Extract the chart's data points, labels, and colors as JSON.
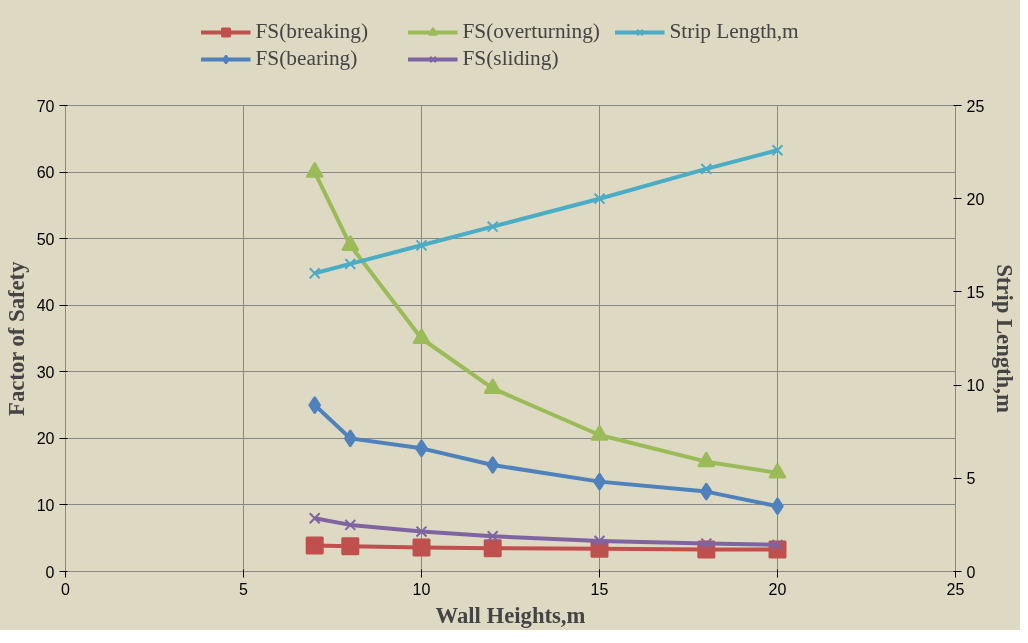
{
  "chart_data": {
    "type": "line",
    "xlabel": "Wall Heights,m",
    "ylabel": "Factor of Safety",
    "y2label": "Strip Length,m",
    "x": [
      7,
      8,
      10,
      12,
      15,
      18,
      20
    ],
    "xlim": [
      0,
      25
    ],
    "xticks": [
      0,
      5,
      10,
      15,
      20,
      25
    ],
    "ylim": [
      0,
      70
    ],
    "yticks": [
      0,
      10,
      20,
      30,
      40,
      50,
      60,
      70
    ],
    "y2lim": [
      0,
      25
    ],
    "y2ticks": [
      0,
      5,
      10,
      15,
      20,
      25
    ],
    "grid": true,
    "legend": "top",
    "series": [
      {
        "name": "FS(breaking)",
        "color": "#c0504d",
        "marker": "square",
        "values": [
          3.9,
          3.8,
          3.6,
          3.5,
          3.4,
          3.3,
          3.3
        ]
      },
      {
        "name": "FS(bearing)",
        "color": "#4f81bd",
        "marker": "diamond",
        "values": [
          25,
          20,
          18.5,
          16,
          13.5,
          12,
          9.8
        ]
      },
      {
        "name": "FS(overturning)",
        "color": "#9bbb59",
        "marker": "triangle",
        "values": [
          60,
          49,
          35,
          27.5,
          20.5,
          16.5,
          14.8
        ]
      },
      {
        "name": "FS(sliding)",
        "color": "#8064a2",
        "marker": "cross",
        "values": [
          8,
          7,
          6,
          5.3,
          4.6,
          4.2,
          4
        ]
      },
      {
        "name": "Strip Length,m",
        "color": "#4bacc6",
        "marker": "cross",
        "axis": "y2",
        "values": [
          16,
          16.5,
          17.5,
          18.5,
          20,
          21.6,
          22.6
        ]
      }
    ]
  }
}
